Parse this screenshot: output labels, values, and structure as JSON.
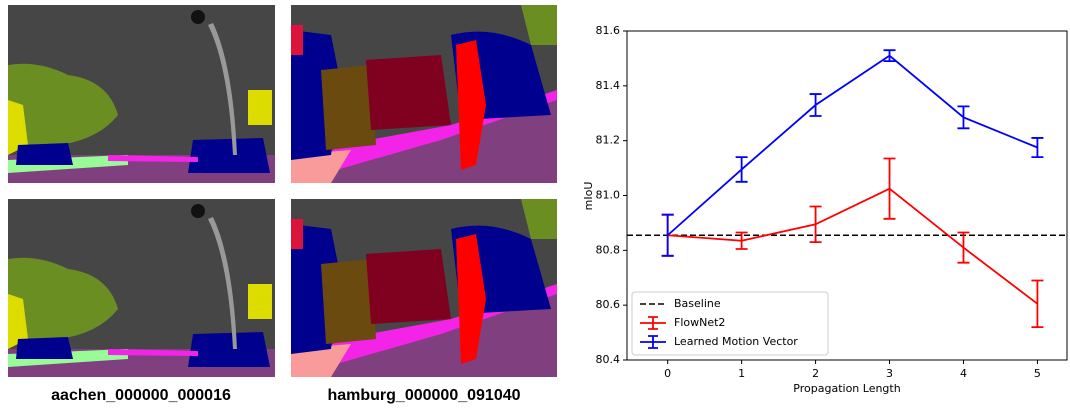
{
  "captions": [
    "aachen_000000_000016",
    "hamburg_000000_091040"
  ],
  "chart_data": {
    "type": "errorline",
    "xlabel": "Propagation Length",
    "ylabel": "mIoU",
    "x": [
      0,
      1,
      2,
      3,
      4,
      5
    ],
    "xlim": [
      -0.55,
      5.4
    ],
    "xticks": [
      0,
      1,
      2,
      3,
      4,
      5
    ],
    "ylim": [
      80.4,
      81.6
    ],
    "yticks": [
      80.4,
      80.6,
      80.8,
      {
        "value": 81,
        "label": "81.0"
      },
      81.2,
      81.4,
      81.6
    ],
    "baseline": {
      "name": "Baseline",
      "value": 80.855,
      "color": "#000000"
    },
    "series": [
      {
        "name": "FlowNet2",
        "color": "#ff0000",
        "values": [
          80.855,
          80.835,
          80.895,
          81.025,
          80.81,
          80.605
        ],
        "errors": [
          0.075,
          0.03,
          0.065,
          0.11,
          0.055,
          0.085
        ]
      },
      {
        "name": "Learned Motion Vector",
        "color": "#0000ff",
        "values": [
          80.855,
          81.095,
          81.33,
          81.51,
          81.285,
          81.175
        ],
        "errors": [
          0.075,
          0.045,
          0.04,
          0.02,
          0.04,
          0.035
        ]
      }
    ],
    "legend": "lower left"
  }
}
